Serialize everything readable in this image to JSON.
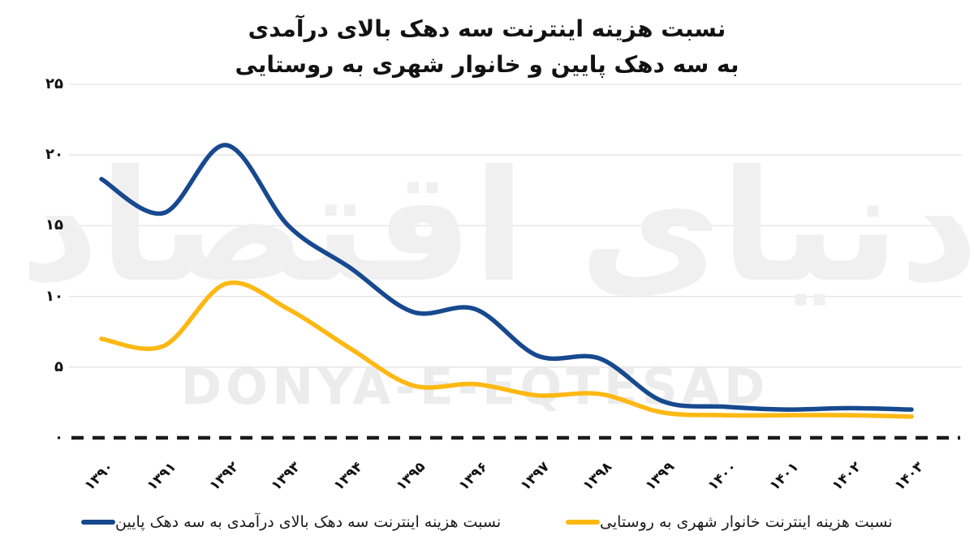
{
  "title": {
    "line1": "نسبت هزینه اینترنت سه دهک بالای درآمدی",
    "line2": "به سه دهک پایین و خانوار شهری به روستایی"
  },
  "watermark": {
    "persian": "دنیای اقتصاد",
    "latin": "DONYA-E-EQTESAD"
  },
  "legend": [
    {
      "label": "نسبت هزینه اینترنت سه دهک بالای درآمدی به سه دهک پایین",
      "color": "#17498F"
    },
    {
      "label": "نسبت هزینه اینترنت خانوار شهری به روستایی",
      "color": "#FDB813"
    }
  ],
  "colors": {
    "series_blue": "#17498F",
    "series_yellow": "#FDB813",
    "grid": "#E3E3E3",
    "zero_line": "#1B1B1B",
    "text": "#111111",
    "watermark_persian": "#F0F0F0",
    "watermark_latin": "#ECECEC"
  },
  "chart_data": {
    "type": "line",
    "smooth": true,
    "title": "نسبت هزینه اینترنت سه دهک بالای درآمدی به سه دهک پایین و خانوار شهری به روستایی",
    "categories": [
      "۱۳۹۰",
      "۱۳۹۱",
      "۱۳۹۲",
      "۱۳۹۳",
      "۱۳۹۴",
      "۱۳۹۵",
      "۱۳۹۶",
      "۱۳۹۷",
      "۱۳۹۸",
      "۱۳۹۹",
      "۱۴۰۰",
      "۱۴۰۱",
      "۱۴۰۲",
      "۱۴۰۳"
    ],
    "series": [
      {
        "name": "نسبت هزینه اینترنت سه دهک بالای درآمدی به سه دهک پایین",
        "color": "#17498F",
        "values": [
          18.3,
          15.9,
          20.7,
          15.0,
          12.0,
          8.9,
          9.1,
          5.8,
          5.6,
          2.6,
          2.2,
          2.0,
          2.1,
          2.0
        ]
      },
      {
        "name": "نسبت هزینه اینترنت خانوار شهری به روستایی",
        "color": "#FDB813",
        "values": [
          7.0,
          6.5,
          10.9,
          9.1,
          6.3,
          3.7,
          3.8,
          3.0,
          3.1,
          1.8,
          1.6,
          1.6,
          1.6,
          1.5
        ]
      }
    ],
    "yticks": {
      "labels": [
        "۰",
        "۵",
        "۱۰",
        "۱۵",
        "۲۰",
        "۲۵"
      ],
      "values": [
        0,
        5,
        10,
        15,
        20,
        25
      ]
    },
    "ylim": [
      0,
      25
    ],
    "grid": true,
    "legend_position": "bottom",
    "zero_line_style": "dashed"
  }
}
